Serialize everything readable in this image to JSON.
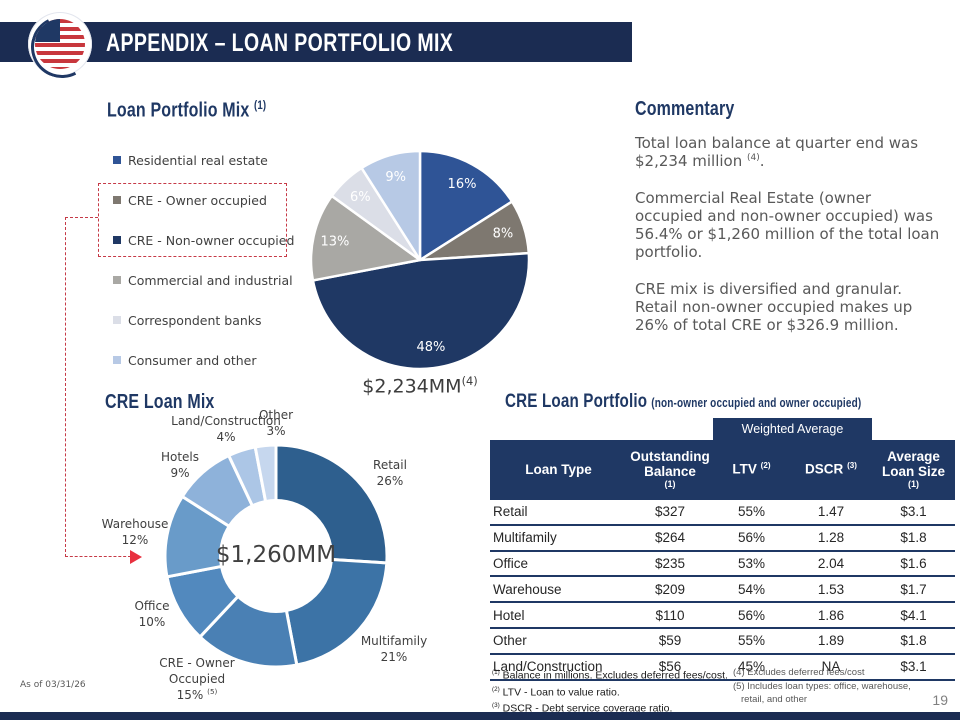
{
  "slide": {
    "header_title": "APPENDIX – LOAN PORTFOLIO MIX",
    "page_number": "19",
    "as_of": "As of 03/31/26",
    "accent_navy": "#1F3864",
    "accent_red": "#C63A47"
  },
  "portfolio_mix": {
    "title": "Loan Portfolio Mix",
    "title_sup": "(1)",
    "total": "$2,234MM",
    "total_sup": "(4)"
  },
  "cre_mix": {
    "title": "CRE Loan Mix",
    "center_label": "$1,260MM"
  },
  "commentary": {
    "title": "Commentary",
    "p1": "Total loan balance at quarter end was $2,234 million",
    "p1_sup": "(4)",
    "p1_end": ".",
    "p2": "Commercial Real Estate (owner occupied and non-owner occupied) was 56.4% or $1,260 million of the total loan portfolio.",
    "p3": "CRE mix is diversified and granular. Retail non-owner occupied makes up 26% of total CRE or $326.9 million."
  },
  "cre_table": {
    "title": "CRE Loan Portfolio",
    "title_sub": "(non-owner occupied and owner occupied)",
    "weighted_average_label": "Weighted Average",
    "columns": [
      {
        "label": "Loan Type",
        "sup": ""
      },
      {
        "label": "Outstanding Balance",
        "sup": "(1)"
      },
      {
        "label": "LTV",
        "sup": "(2)"
      },
      {
        "label": "DSCR",
        "sup": "(3)"
      },
      {
        "label": "Average Loan Size",
        "sup": "(1)"
      }
    ],
    "rows": [
      [
        "Retail",
        "$327",
        "55%",
        "1.47",
        "$3.1"
      ],
      [
        "Multifamily",
        "$264",
        "56%",
        "1.28",
        "$1.8"
      ],
      [
        "Office",
        "$235",
        "53%",
        "2.04",
        "$1.6"
      ],
      [
        "Warehouse",
        "$209",
        "54%",
        "1.53",
        "$1.7"
      ],
      [
        "Hotel",
        "$110",
        "56%",
        "1.86",
        "$4.1"
      ],
      [
        "Other",
        "$59",
        "55%",
        "1.89",
        "$1.8"
      ],
      [
        "Land/Construction",
        "$56",
        "45%",
        "NA",
        "$3.1"
      ]
    ]
  },
  "footnotes": {
    "left": [
      {
        "marker": "(1)",
        "text": "Balance in millions. Excludes deferred fees/cost."
      },
      {
        "marker": "(2)",
        "text": "LTV - Loan to value ratio."
      },
      {
        "marker": "(3)",
        "text": "DSCR - Debt service coverage ratio."
      }
    ],
    "right_line1": "(4) Excludes deferred fees/cost",
    "right_line2": "(5) Includes loan types: office, warehouse,",
    "right_line3": "retail, and other"
  },
  "chart_data": [
    {
      "type": "pie",
      "title": "Loan Portfolio Mix (1)",
      "total_label": "$2,234MM (4)",
      "legend_position": "left",
      "segments": [
        {
          "label": "Residential real estate",
          "value": 16,
          "pct_label": "16%",
          "color": "#2F5496"
        },
        {
          "label": "CRE - Owner occupied",
          "value": 8,
          "pct_label": "8%",
          "color": "#7E7870"
        },
        {
          "label": "CRE - Non-owner occupied",
          "value": 48,
          "pct_label": "48%",
          "color": "#1F3864"
        },
        {
          "label": "Commercial and industrial",
          "value": 13,
          "pct_label": "13%",
          "color": "#A9A8A4"
        },
        {
          "label": "Correspondent banks",
          "value": 6,
          "pct_label": "6%",
          "color": "#DBDEE7"
        },
        {
          "label": "Consumer and other",
          "value": 9,
          "pct_label": "9%",
          "color": "#B7C9E5"
        }
      ]
    },
    {
      "type": "donut",
      "title": "CRE Loan Mix",
      "center_label": "$1,260MM",
      "segments": [
        {
          "label": "Retail",
          "value": 26,
          "pct_label": "26%",
          "color": "#2E5F8E"
        },
        {
          "label": "Multifamily",
          "value": 21,
          "pct_label": "21%",
          "color": "#3C73A6"
        },
        {
          "label": "CRE - Owner Occupied",
          "value": 15,
          "pct_label": "15%",
          "pct_sup": "(5)",
          "color": "#4A80B4"
        },
        {
          "label": "Office",
          "value": 10,
          "pct_label": "10%",
          "color": "#5289BE"
        },
        {
          "label": "Warehouse",
          "value": 12,
          "pct_label": "12%",
          "color": "#699BC9"
        },
        {
          "label": "Hotels",
          "value": 9,
          "pct_label": "9%",
          "color": "#8EB2DA"
        },
        {
          "label": "Land/Construction",
          "value": 4,
          "pct_label": "4%",
          "color": "#ACC6E6"
        },
        {
          "label": "Other",
          "value": 3,
          "pct_label": "3%",
          "color": "#C6D7EE"
        }
      ]
    }
  ]
}
